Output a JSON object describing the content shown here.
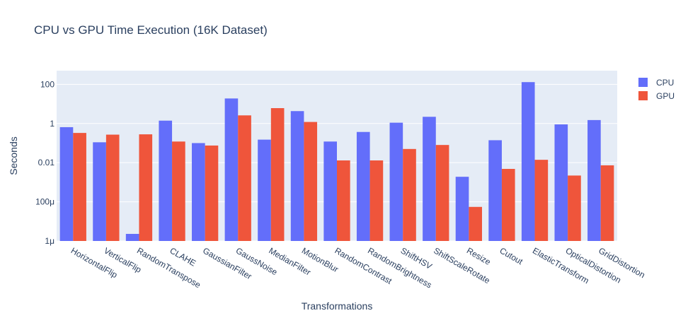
{
  "chart_data": {
    "type": "bar",
    "title": "CPU vs GPU Time Execution (16K Dataset)",
    "xlabel": "Transformations",
    "ylabel": "Seconds",
    "yscale": "log",
    "ylim": [
      1e-06,
      500
    ],
    "yticks": [
      {
        "value": 1e-06,
        "label": "1μ"
      },
      {
        "value": 0.0001,
        "label": "100μ"
      },
      {
        "value": 0.01,
        "label": "0.01"
      },
      {
        "value": 1,
        "label": "1"
      },
      {
        "value": 100,
        "label": "100"
      }
    ],
    "grid": true,
    "legend_position": "top-right",
    "categories": [
      "HorizontalFlip",
      "VerticalFlip",
      "RandomTranspose",
      "CLAHE",
      "GaussianFilter",
      "GaussNoise",
      "MedianFilter",
      "MotionBlur",
      "RandomContrast",
      "RandomBrightness",
      "ShiftHSV",
      "ShiftScaleRotate",
      "Resize",
      "Cutout",
      "ElasticTransform",
      "OpticalDistortion",
      "GridDistortion"
    ],
    "series": [
      {
        "name": "CPU",
        "color": "#636efa",
        "values": [
          0.65,
          0.11,
          2.3e-06,
          1.4,
          0.1,
          19,
          0.15,
          4.3,
          0.12,
          0.37,
          1.1,
          2.2,
          0.0019,
          0.14,
          130,
          0.9,
          1.5
        ]
      },
      {
        "name": "GPU",
        "color": "#ef553b",
        "values": [
          0.33,
          0.27,
          0.28,
          0.12,
          0.075,
          2.6,
          6.1,
          1.2,
          0.013,
          0.013,
          0.05,
          0.08,
          5.5e-05,
          0.0048,
          0.014,
          0.0022,
          0.0073
        ]
      }
    ]
  }
}
